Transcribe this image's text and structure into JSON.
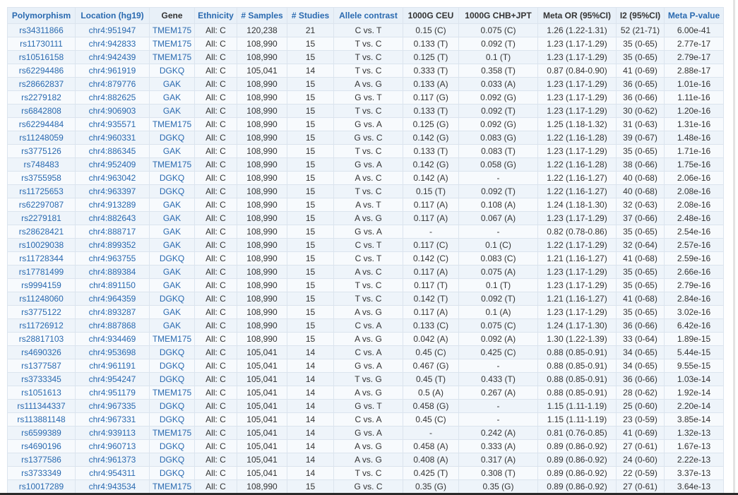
{
  "columns": [
    {
      "label": "Polymorphism",
      "sortable": true
    },
    {
      "label": "Location (hg19)",
      "sortable": true
    },
    {
      "label": "Gene",
      "sortable": false
    },
    {
      "label": "Ethnicity",
      "sortable": true
    },
    {
      "label": "# Samples",
      "sortable": true
    },
    {
      "label": "# Studies",
      "sortable": true
    },
    {
      "label": "Allele contrast",
      "sortable": true
    },
    {
      "label": "1000G CEU",
      "sortable": false
    },
    {
      "label": "1000G CHB+JPT",
      "sortable": false
    },
    {
      "label": "Meta OR (95%CI)",
      "sortable": false
    },
    {
      "label": "I2 (95%CI)",
      "sortable": false
    },
    {
      "label": "Meta P-value",
      "sortable": true
    }
  ],
  "rows": [
    [
      "rs34311866",
      "chr4:951947",
      "TMEM175",
      "All: C",
      "120,238",
      "21",
      "C vs. T",
      "0.15 (C)",
      "0.075 (C)",
      "1.26 (1.22-1.31)",
      "52 (21-71)",
      "6.00e-41"
    ],
    [
      "rs11730111",
      "chr4:942833",
      "TMEM175",
      "All: C",
      "108,990",
      "15",
      "T vs. C",
      "0.133 (T)",
      "0.092 (T)",
      "1.23 (1.17-1.29)",
      "35 (0-65)",
      "2.77e-17"
    ],
    [
      "rs10516158",
      "chr4:942439",
      "TMEM175",
      "All: C",
      "108,990",
      "15",
      "T vs. C",
      "0.125 (T)",
      "0.1 (T)",
      "1.23 (1.17-1.29)",
      "35 (0-65)",
      "2.79e-17"
    ],
    [
      "rs62294486",
      "chr4:961919",
      "DGKQ",
      "All: C",
      "105,041",
      "14",
      "T vs. C",
      "0.333 (T)",
      "0.358 (T)",
      "0.87 (0.84-0.90)",
      "41 (0-69)",
      "2.88e-17"
    ],
    [
      "rs28662837",
      "chr4:879776",
      "GAK",
      "All: C",
      "108,990",
      "15",
      "A vs. G",
      "0.133 (A)",
      "0.033 (A)",
      "1.23 (1.17-1.29)",
      "36 (0-65)",
      "1.01e-16"
    ],
    [
      "rs2279182",
      "chr4:882625",
      "GAK",
      "All: C",
      "108,990",
      "15",
      "G vs. T",
      "0.117 (G)",
      "0.092 (G)",
      "1.23 (1.17-1.29)",
      "36 (0-66)",
      "1.11e-16"
    ],
    [
      "rs6842808",
      "chr4:906903",
      "GAK",
      "All: C",
      "108,990",
      "15",
      "T vs. C",
      "0.133 (T)",
      "0.092 (T)",
      "1.23 (1.17-1.29)",
      "30 (0-62)",
      "1.20e-16"
    ],
    [
      "rs62294484",
      "chr4:935571",
      "TMEM175",
      "All: C",
      "108,990",
      "15",
      "G vs. A",
      "0.125 (G)",
      "0.092 (G)",
      "1.25 (1.18-1.32)",
      "31 (0-63)",
      "1.31e-16"
    ],
    [
      "rs11248059",
      "chr4:960331",
      "DGKQ",
      "All: C",
      "108,990",
      "15",
      "G vs. C",
      "0.142 (G)",
      "0.083 (G)",
      "1.22 (1.16-1.28)",
      "39 (0-67)",
      "1.48e-16"
    ],
    [
      "rs3775126",
      "chr4:886345",
      "GAK",
      "All: C",
      "108,990",
      "15",
      "T vs. C",
      "0.133 (T)",
      "0.083 (T)",
      "1.23 (1.17-1.29)",
      "35 (0-65)",
      "1.71e-16"
    ],
    [
      "rs748483",
      "chr4:952409",
      "TMEM175",
      "All: C",
      "108,990",
      "15",
      "G vs. A",
      "0.142 (G)",
      "0.058 (G)",
      "1.22 (1.16-1.28)",
      "38 (0-66)",
      "1.75e-16"
    ],
    [
      "rs3755958",
      "chr4:963042",
      "DGKQ",
      "All: C",
      "108,990",
      "15",
      "A vs. C",
      "0.142 (A)",
      "-",
      "1.22 (1.16-1.27)",
      "40 (0-68)",
      "2.06e-16"
    ],
    [
      "rs11725653",
      "chr4:963397",
      "DGKQ",
      "All: C",
      "108,990",
      "15",
      "T vs. C",
      "0.15 (T)",
      "0.092 (T)",
      "1.22 (1.16-1.27)",
      "40 (0-68)",
      "2.08e-16"
    ],
    [
      "rs62297087",
      "chr4:913289",
      "GAK",
      "All: C",
      "108,990",
      "15",
      "A vs. T",
      "0.117 (A)",
      "0.108 (A)",
      "1.24 (1.18-1.30)",
      "32 (0-63)",
      "2.08e-16"
    ],
    [
      "rs2279181",
      "chr4:882643",
      "GAK",
      "All: C",
      "108,990",
      "15",
      "A vs. G",
      "0.117 (A)",
      "0.067 (A)",
      "1.23 (1.17-1.29)",
      "37 (0-66)",
      "2.48e-16"
    ],
    [
      "rs28628421",
      "chr4:888717",
      "GAK",
      "All: C",
      "108,990",
      "15",
      "G vs. A",
      "-",
      "-",
      "0.82 (0.78-0.86)",
      "35 (0-65)",
      "2.54e-16"
    ],
    [
      "rs10029038",
      "chr4:899352",
      "GAK",
      "All: C",
      "108,990",
      "15",
      "C vs. T",
      "0.117 (C)",
      "0.1 (C)",
      "1.22 (1.17-1.29)",
      "32 (0-64)",
      "2.57e-16"
    ],
    [
      "rs11728344",
      "chr4:963755",
      "DGKQ",
      "All: C",
      "108,990",
      "15",
      "C vs. T",
      "0.142 (C)",
      "0.083 (C)",
      "1.21 (1.16-1.27)",
      "41 (0-68)",
      "2.59e-16"
    ],
    [
      "rs17781499",
      "chr4:889384",
      "GAK",
      "All: C",
      "108,990",
      "15",
      "A vs. C",
      "0.117 (A)",
      "0.075 (A)",
      "1.23 (1.17-1.29)",
      "35 (0-65)",
      "2.66e-16"
    ],
    [
      "rs9994159",
      "chr4:891150",
      "GAK",
      "All: C",
      "108,990",
      "15",
      "T vs. C",
      "0.117 (T)",
      "0.1 (T)",
      "1.23 (1.17-1.29)",
      "35 (0-65)",
      "2.79e-16"
    ],
    [
      "rs11248060",
      "chr4:964359",
      "DGKQ",
      "All: C",
      "108,990",
      "15",
      "T vs. C",
      "0.142 (T)",
      "0.092 (T)",
      "1.21 (1.16-1.27)",
      "41 (0-68)",
      "2.84e-16"
    ],
    [
      "rs3775122",
      "chr4:893287",
      "GAK",
      "All: C",
      "108,990",
      "15",
      "A vs. G",
      "0.117 (A)",
      "0.1 (A)",
      "1.23 (1.17-1.29)",
      "35 (0-65)",
      "3.02e-16"
    ],
    [
      "rs11726912",
      "chr4:887868",
      "GAK",
      "All: C",
      "108,990",
      "15",
      "C vs. A",
      "0.133 (C)",
      "0.075 (C)",
      "1.24 (1.17-1.30)",
      "36 (0-66)",
      "6.42e-16"
    ],
    [
      "rs28817103",
      "chr4:934469",
      "TMEM175",
      "All: C",
      "108,990",
      "15",
      "A vs. G",
      "0.042 (A)",
      "0.092 (A)",
      "1.30 (1.22-1.39)",
      "33 (0-64)",
      "1.89e-15"
    ],
    [
      "rs4690326",
      "chr4:953698",
      "DGKQ",
      "All: C",
      "105,041",
      "14",
      "C vs. A",
      "0.45 (C)",
      "0.425 (C)",
      "0.88 (0.85-0.91)",
      "34 (0-65)",
      "5.44e-15"
    ],
    [
      "rs1377587",
      "chr4:961191",
      "DGKQ",
      "All: C",
      "105,041",
      "14",
      "G vs. A",
      "0.467 (G)",
      "-",
      "0.88 (0.85-0.91)",
      "34 (0-65)",
      "9.55e-15"
    ],
    [
      "rs3733345",
      "chr4:954247",
      "DGKQ",
      "All: C",
      "105,041",
      "14",
      "T vs. G",
      "0.45 (T)",
      "0.433 (T)",
      "0.88 (0.85-0.91)",
      "36 (0-66)",
      "1.03e-14"
    ],
    [
      "rs1051613",
      "chr4:951179",
      "TMEM175",
      "All: C",
      "105,041",
      "14",
      "A vs. G",
      "0.5 (A)",
      "0.267 (A)",
      "0.88 (0.85-0.91)",
      "28 (0-62)",
      "1.92e-14"
    ],
    [
      "rs111344337",
      "chr4:967335",
      "DGKQ",
      "All: C",
      "105,041",
      "14",
      "G vs. T",
      "0.458 (G)",
      "-",
      "1.15 (1.11-1.19)",
      "25 (0-60)",
      "2.20e-14"
    ],
    [
      "rs113881148",
      "chr4:967331",
      "DGKQ",
      "All: C",
      "105,041",
      "14",
      "C vs. A",
      "0.45 (C)",
      "-",
      "1.15 (1.11-1.19)",
      "23 (0-59)",
      "3.85e-14"
    ],
    [
      "rs6599389",
      "chr4:939113",
      "TMEM175",
      "All: C",
      "105,041",
      "14",
      "G vs. A",
      "-",
      "0.242 (A)",
      "0.81 (0.76-0.85)",
      "41 (0-69)",
      "1.32e-13"
    ],
    [
      "rs4690196",
      "chr4:960713",
      "DGKQ",
      "All: C",
      "105,041",
      "14",
      "A vs. G",
      "0.458 (A)",
      "0.333 (A)",
      "0.89 (0.86-0.92)",
      "27 (0-61)",
      "1.67e-13"
    ],
    [
      "rs1377586",
      "chr4:961373",
      "DGKQ",
      "All: C",
      "105,041",
      "14",
      "A vs. G",
      "0.408 (A)",
      "0.317 (A)",
      "0.89 (0.86-0.92)",
      "24 (0-60)",
      "2.22e-13"
    ],
    [
      "rs3733349",
      "chr4:954311",
      "DGKQ",
      "All: C",
      "105,041",
      "14",
      "T vs. C",
      "0.425 (T)",
      "0.308 (T)",
      "0.89 (0.86-0.92)",
      "22 (0-59)",
      "3.37e-13"
    ],
    [
      "rs10017289",
      "chr4:943534",
      "TMEM175",
      "All: C",
      "108,990",
      "15",
      "G vs. C",
      "0.35 (G)",
      "0.35 (G)",
      "0.89 (0.86-0.92)",
      "27 (0-61)",
      "3.64e-13"
    ]
  ]
}
